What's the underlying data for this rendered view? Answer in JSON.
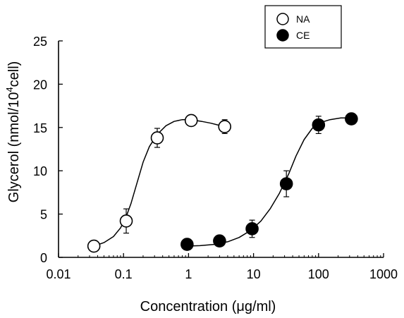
{
  "chart_data": {
    "type": "scatter",
    "xscale": "log",
    "xlim": [
      0.01,
      1000
    ],
    "ylim": [
      0,
      25
    ],
    "xticks": [
      "0.01",
      "0.1",
      "1",
      "10",
      "100",
      "1000"
    ],
    "xtick_values": [
      0.01,
      0.1,
      1,
      10,
      100,
      1000
    ],
    "yticks": [
      "0",
      "5",
      "10",
      "15",
      "20",
      "25"
    ],
    "ytick_values": [
      0,
      5,
      10,
      15,
      20,
      25
    ],
    "xlabel": "Concentration (μg/ml)",
    "ylabel_main": "Glycerol (nmol/10",
    "ylabel_sup": "4",
    "ylabel_tail": "cell)",
    "grid": false,
    "legend": "top-right",
    "series": [
      {
        "name": "NA",
        "marker": "open-circle",
        "points": [
          {
            "x": 0.035,
            "y": 1.3,
            "err": 0
          },
          {
            "x": 0.11,
            "y": 4.2,
            "err": 1.4
          },
          {
            "x": 0.33,
            "y": 13.8,
            "err": 1.1
          },
          {
            "x": 1.1,
            "y": 15.8,
            "err": 0
          },
          {
            "x": 3.6,
            "y": 15.1,
            "err": 0.8
          }
        ],
        "fit": [
          [
            0.035,
            1.3
          ],
          [
            0.05,
            1.7
          ],
          [
            0.07,
            2.4
          ],
          [
            0.09,
            3.4
          ],
          [
            0.11,
            4.7
          ],
          [
            0.13,
            6.2
          ],
          [
            0.16,
            8.5
          ],
          [
            0.2,
            11.0
          ],
          [
            0.25,
            12.8
          ],
          [
            0.33,
            14.2
          ],
          [
            0.45,
            15.2
          ],
          [
            0.6,
            15.7
          ],
          [
            0.8,
            15.9
          ],
          [
            1.1,
            15.9
          ],
          [
            1.6,
            15.7
          ],
          [
            2.2,
            15.5
          ],
          [
            2.8,
            15.3
          ],
          [
            3.6,
            15.1
          ]
        ]
      },
      {
        "name": "CE",
        "marker": "filled-circle",
        "points": [
          {
            "x": 0.95,
            "y": 1.5,
            "err": 0
          },
          {
            "x": 3.0,
            "y": 1.9,
            "err": 0.6
          },
          {
            "x": 9.5,
            "y": 3.3,
            "err": 1.0
          },
          {
            "x": 32,
            "y": 8.5,
            "err": 1.5
          },
          {
            "x": 100,
            "y": 15.3,
            "err": 1.0
          },
          {
            "x": 320,
            "y": 16.0,
            "err": 0.5
          }
        ],
        "fit": [
          [
            0.95,
            1.3
          ],
          [
            1.5,
            1.35
          ],
          [
            2.5,
            1.5
          ],
          [
            4,
            1.8
          ],
          [
            6,
            2.3
          ],
          [
            9,
            3.1
          ],
          [
            13,
            4.2
          ],
          [
            18,
            5.6
          ],
          [
            25,
            7.4
          ],
          [
            35,
            9.7
          ],
          [
            45,
            11.7
          ],
          [
            60,
            13.6
          ],
          [
            80,
            14.9
          ],
          [
            100,
            15.5
          ],
          [
            150,
            15.9
          ],
          [
            220,
            16.1
          ],
          [
            320,
            16.1
          ]
        ]
      }
    ]
  }
}
